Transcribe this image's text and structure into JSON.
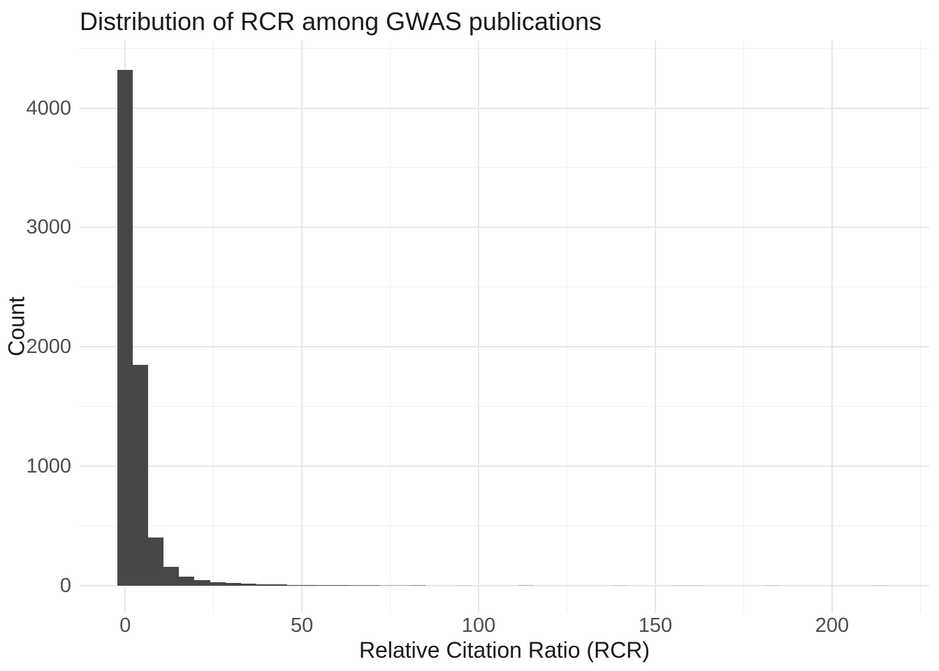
{
  "chart_data": {
    "type": "bar",
    "subtype": "histogram",
    "title": "Distribution of RCR among GWAS publications",
    "xlabel": "Relative Citation Ratio (RCR)",
    "ylabel": "Count",
    "bins": {
      "start": -2.18,
      "width": 4.36,
      "n": 50
    },
    "counts": [
      4320,
      1850,
      400,
      158,
      76,
      43,
      28,
      22,
      14,
      10,
      8,
      7,
      6,
      5,
      5,
      4,
      4,
      2,
      2,
      3,
      0,
      0,
      1,
      0,
      0,
      0,
      2,
      0,
      0,
      0,
      0,
      0,
      1,
      0,
      0,
      0,
      1,
      1,
      0,
      0,
      0,
      0,
      1,
      0,
      0,
      0,
      0,
      0,
      0,
      1
    ],
    "x_ticks": [
      0,
      50,
      100,
      150,
      200
    ],
    "x_minor_ticks": [
      25,
      75,
      125,
      175,
      225
    ],
    "y_ticks": [
      0,
      1000,
      2000,
      3000,
      4000
    ],
    "y_minor_ticks": [
      500,
      1500,
      2500,
      3500,
      4500
    ],
    "xlim": [
      -12.9,
      227.5
    ],
    "ylim": [
      -230,
      4565
    ],
    "grid": true,
    "legend": false,
    "colors": {
      "bar": "#474747",
      "grid_major": "#e8e8e8",
      "grid_minor": "#f0f0f0",
      "tick_label": "#4d4d4d",
      "text": "#1a1a1a",
      "background": "#ffffff"
    }
  }
}
